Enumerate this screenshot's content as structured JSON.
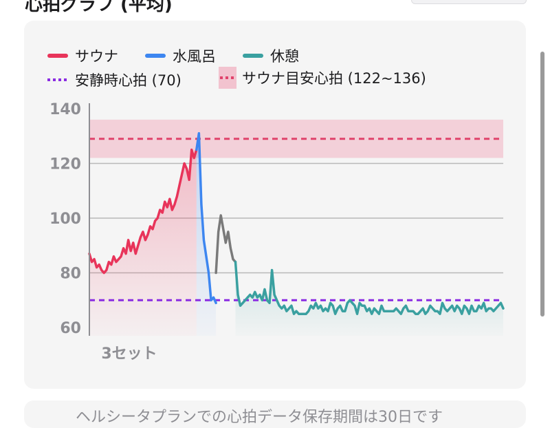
{
  "header": {
    "title_fragment": "心拍グラフ (平均)"
  },
  "legend": [
    {
      "key": "sauna",
      "label": "サウナ",
      "style": "line",
      "color": "#e8345a"
    },
    {
      "key": "cold",
      "label": "水風呂",
      "style": "line",
      "color": "#3d86f0"
    },
    {
      "key": "rest",
      "label": "休憩",
      "style": "line",
      "color": "#3aa0a0"
    },
    {
      "key": "resting",
      "label": "安静時心拍 (70)",
      "style": "dots",
      "color": "#8a2be2"
    },
    {
      "key": "target",
      "label": "サウナ目安心拍 (122~136)",
      "style": "band",
      "color": "#e0426b"
    }
  ],
  "colors": {
    "sauna": "#e8345a",
    "cold": "#3d86f0",
    "rest": "#3aa0a0",
    "transition": "#7a7a7a",
    "resting_line": "#8a2be2",
    "target_band": "#f2c3cf",
    "target_line": "#e0426b",
    "grid": "#b8b8b8",
    "tick": "#8e8e93"
  },
  "chart_data": {
    "type": "line",
    "title": "",
    "xlabel": "3セット",
    "ylabel": "",
    "ylim": [
      57,
      142
    ],
    "yticks": [
      60,
      80,
      100,
      120,
      140
    ],
    "grid": "horizontal",
    "resting_heart_rate": 70,
    "target_range": [
      122,
      136
    ],
    "target_line": 129,
    "series": [
      {
        "name": "サウナ",
        "x": [
          0,
          1,
          2,
          3,
          4,
          5,
          6,
          7,
          8,
          9,
          10,
          11,
          12,
          13,
          14,
          15,
          16,
          17,
          18,
          19,
          20,
          21,
          22,
          23,
          24,
          25,
          26,
          27,
          28,
          29,
          30,
          31,
          32,
          33,
          34,
          35,
          36,
          37,
          38,
          39,
          40,
          41,
          42,
          43,
          44
        ],
        "values": [
          87,
          84,
          85,
          82,
          83,
          81,
          80,
          81,
          84,
          83,
          86,
          84,
          85,
          86,
          89,
          87,
          92,
          88,
          91,
          87,
          90,
          93,
          95,
          92,
          94,
          97,
          96,
          99,
          100,
          103,
          102,
          106,
          104,
          107,
          103,
          105,
          108,
          112,
          116,
          120,
          118,
          114,
          125,
          122,
          125
        ]
      },
      {
        "name": "水風呂",
        "x": [
          44,
          45,
          46,
          47,
          48,
          49,
          50,
          51,
          52
        ],
        "values": [
          125,
          131,
          105,
          92,
          86,
          80,
          70,
          71,
          69
        ]
      },
      {
        "name": "",
        "x": [
          52,
          53,
          54,
          55,
          56,
          57,
          58,
          59,
          60
        ],
        "values": [
          80,
          95,
          101,
          96,
          91,
          95,
          89,
          85,
          84
        ]
      },
      {
        "name": "休憩",
        "x": [
          60,
          61,
          62,
          63,
          64,
          65,
          66,
          67,
          68,
          69,
          70,
          71,
          72,
          73,
          74,
          75,
          76,
          77,
          78,
          79,
          80,
          81,
          82,
          83,
          84,
          85,
          86,
          87,
          88,
          89,
          90,
          91,
          92,
          93,
          94,
          95,
          96,
          97,
          98,
          99,
          100,
          101,
          102,
          103,
          104,
          105,
          106,
          107,
          108,
          109,
          110,
          111,
          112,
          113,
          114,
          115,
          116,
          117,
          118,
          119,
          120,
          121,
          122,
          123,
          124,
          125,
          126,
          127,
          128,
          129,
          130,
          131,
          132,
          133,
          134,
          135,
          136,
          137,
          138,
          139,
          140,
          141,
          142,
          143,
          144,
          145,
          146,
          147,
          148,
          149,
          150,
          151,
          152,
          153,
          154,
          155,
          156,
          157,
          158,
          159,
          160,
          161,
          162,
          163,
          164,
          165,
          166,
          167,
          168,
          169,
          170
        ],
        "values": [
          84,
          72,
          68,
          69,
          70,
          71,
          72,
          71,
          73,
          71,
          72,
          70,
          74,
          70,
          69,
          81,
          72,
          70,
          68,
          67,
          68,
          66,
          67,
          68,
          65,
          66,
          65,
          65,
          65,
          65,
          66,
          68,
          67,
          69,
          67,
          68,
          66,
          67,
          66,
          69,
          68,
          65,
          67,
          68,
          66,
          66,
          69,
          70,
          69,
          68,
          65,
          69,
          68,
          68,
          66,
          67,
          65,
          67,
          66,
          65,
          68,
          66,
          66,
          66,
          66,
          66,
          67,
          66,
          65,
          67,
          68,
          66,
          66,
          66,
          65,
          65,
          66,
          67,
          65,
          66,
          68,
          67,
          66,
          66,
          65,
          69,
          67,
          66,
          67,
          68,
          66,
          68,
          67,
          65,
          68,
          67,
          65,
          68,
          66,
          66,
          68,
          67,
          69,
          66,
          67,
          67,
          66,
          67,
          68,
          69,
          67
        ]
      }
    ]
  },
  "footer": {
    "text_fragment": "ヘルシータプランでの心拍データ保存期間は30日です"
  }
}
